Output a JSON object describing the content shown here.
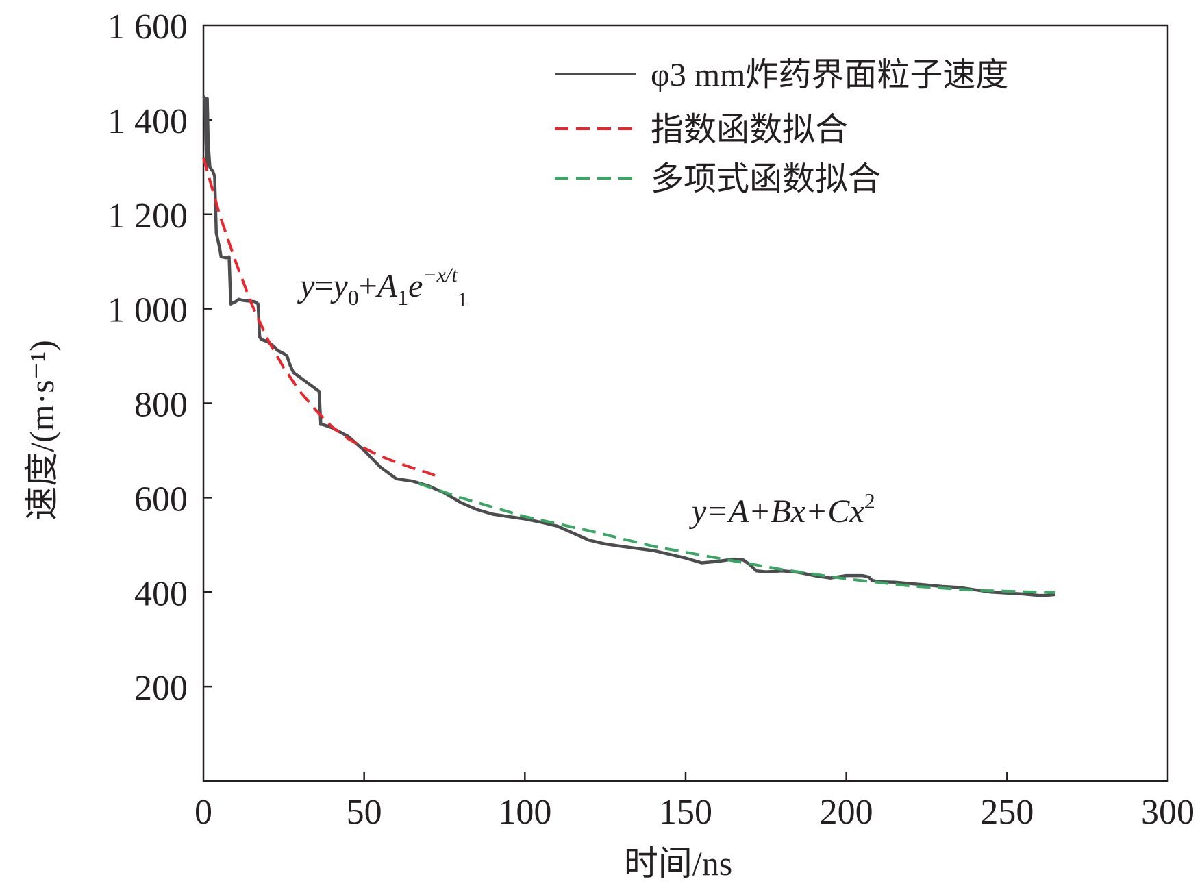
{
  "chart_data": {
    "type": "line",
    "xlabel": "时间/ns",
    "ylabel": "速度/(m·s⁻¹)",
    "xlim": [
      0,
      300
    ],
    "ylim": [
      0,
      1600
    ],
    "x_ticks": [
      "0",
      "50",
      "100",
      "150",
      "200",
      "250",
      "300"
    ],
    "x_tick_values": [
      0,
      50,
      100,
      150,
      200,
      250,
      300
    ],
    "y_ticks": [
      "200",
      "400",
      "600",
      "800",
      "1 000",
      "1 200",
      "1 400",
      "1 600"
    ],
    "y_tick_values": [
      200,
      400,
      600,
      800,
      1000,
      1200,
      1400,
      1600
    ],
    "grid": false,
    "legend_position": "top-right",
    "series": [
      {
        "name": "φ3 mm炸药界面粒子速度",
        "style": "solid",
        "color": "#4d4d4f",
        "x": [
          0,
          0.5,
          1,
          1.2,
          1.5,
          2,
          3,
          3.5,
          4,
          5,
          5.5,
          7,
          8,
          8.5,
          9,
          10,
          11,
          12,
          13,
          16,
          17,
          17.5,
          18,
          20,
          21,
          22,
          23,
          25,
          26,
          27,
          28,
          30,
          33,
          36,
          36.5,
          37,
          40,
          45,
          50,
          55,
          60,
          65,
          70,
          75,
          80,
          85,
          90,
          95,
          100,
          105,
          110,
          115,
          120,
          125,
          130,
          140,
          150,
          155,
          160,
          165,
          168,
          170,
          172,
          175,
          180,
          185,
          190,
          195,
          200,
          205,
          207,
          208,
          210,
          215,
          220,
          225,
          230,
          235,
          240,
          245,
          250,
          255,
          260,
          262,
          265
        ],
        "y": [
          1450,
          1445,
          1300,
          1445,
          1350,
          1300,
          1290,
          1280,
          1160,
          1130,
          1110,
          1108,
          1110,
          1010,
          1012,
          1015,
          1020,
          1018,
          1017,
          1015,
          1010,
          940,
          935,
          930,
          925,
          920,
          912,
          905,
          900,
          880,
          865,
          855,
          840,
          825,
          755,
          755,
          748,
          730,
          700,
          665,
          640,
          635,
          625,
          610,
          590,
          575,
          565,
          560,
          555,
          548,
          540,
          525,
          510,
          502,
          497,
          488,
          472,
          462,
          465,
          470,
          468,
          458,
          445,
          443,
          445,
          442,
          435,
          430,
          435,
          435,
          432,
          425,
          422,
          421,
          418,
          415,
          412,
          410,
          405,
          400,
          398,
          396,
          393,
          393,
          395
        ]
      },
      {
        "name": "指数函数拟合",
        "style": "dashed",
        "color": "#e8262d",
        "x": [
          0,
          5,
          10,
          15,
          20,
          25,
          30,
          35,
          40,
          45,
          50,
          55,
          60,
          65,
          70,
          72
        ],
        "y": [
          1320,
          1200,
          1100,
          1010,
          935,
          875,
          825,
          785,
          750,
          725,
          705,
          688,
          675,
          663,
          652,
          647
        ]
      },
      {
        "name": "多项式函数拟合",
        "style": "dashed",
        "color": "#3aa664",
        "x": [
          67,
          80,
          100,
          120,
          140,
          160,
          180,
          200,
          220,
          240,
          260,
          265
        ],
        "y": [
          630,
          600,
          560,
          530,
          497,
          472,
          448,
          428,
          413,
          404,
          400,
          399
        ]
      }
    ],
    "annotations": [
      {
        "id": "exp_formula",
        "text": "y=y0+A1e^(-x/t1)"
      },
      {
        "id": "poly_formula",
        "text": "y=A+Bx+Cx2"
      }
    ],
    "formula_exp": {
      "y": "y",
      "eq": "=",
      "y0": "y",
      "sub0": "0",
      "plus": "+",
      "A": "A",
      "sub1": "1",
      "e": "e",
      "exp": "−x/t",
      "expsub": "1"
    },
    "formula_poly": {
      "text": "y=A+Bx+Cx",
      "sup": "2"
    }
  }
}
